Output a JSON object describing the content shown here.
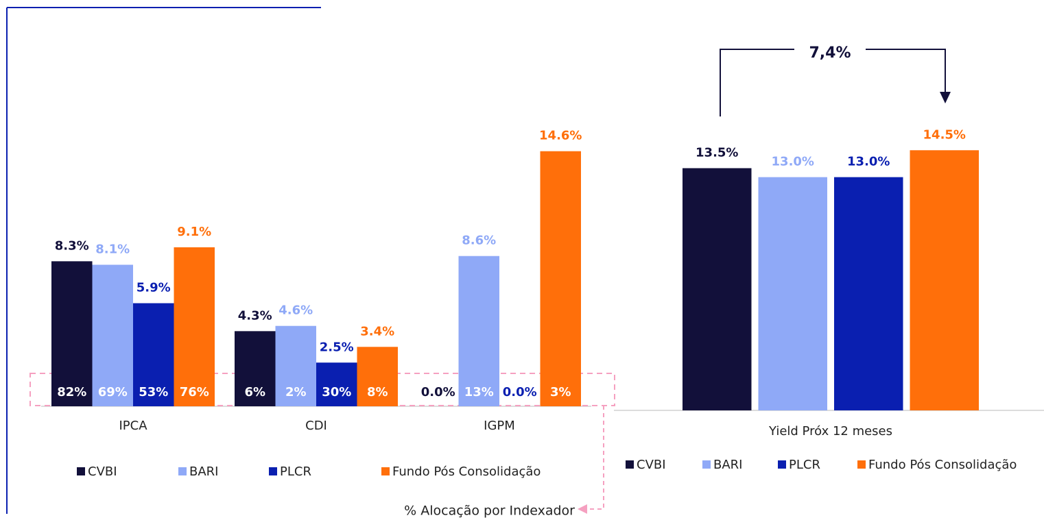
{
  "chart_data": [
    {
      "type": "bar",
      "categories": [
        "IPCA",
        "CDI",
        "IGPM"
      ],
      "series": [
        {
          "name": "CVBI",
          "color": "#12103a",
          "values": [
            8.3,
            4.3,
            null
          ],
          "value_labels": [
            "8.3%",
            "4.3%",
            null
          ],
          "allocation": [
            82,
            6,
            0
          ],
          "allocation_labels": [
            "82%",
            "6%",
            "0.0%"
          ]
        },
        {
          "name": "BARI",
          "color": "#8fa9f7",
          "values": [
            8.1,
            4.6,
            8.6
          ],
          "value_labels": [
            "8.1%",
            "4.6%",
            "8.6%"
          ],
          "allocation": [
            69,
            2,
            13
          ],
          "allocation_labels": [
            "69%",
            "2%",
            "13%"
          ]
        },
        {
          "name": "PLCR",
          "color": "#0a1fb0",
          "values": [
            5.9,
            2.5,
            null
          ],
          "value_labels": [
            "5.9%",
            "2.5%",
            null
          ],
          "allocation": [
            53,
            30,
            0
          ],
          "allocation_labels": [
            "53%",
            "30%",
            "0.0%"
          ]
        },
        {
          "name": "Fundo Pós Consolidação",
          "color": "#ff6f0a",
          "values": [
            9.1,
            3.4,
            14.6
          ],
          "value_labels": [
            "9.1%",
            "3.4%",
            "14.6%"
          ],
          "allocation": [
            76,
            8,
            3
          ],
          "allocation_labels": [
            "76%",
            "8%",
            "3%"
          ]
        }
      ],
      "ylim": [
        0,
        16
      ],
      "annotation": "% Alocação por Indexador"
    },
    {
      "type": "bar",
      "categories": [
        "Yield Próx 12 meses"
      ],
      "series": [
        {
          "name": "CVBI",
          "color": "#12103a",
          "values": [
            13.5
          ],
          "value_labels": [
            "13.5%"
          ]
        },
        {
          "name": "BARI",
          "color": "#8fa9f7",
          "values": [
            13.0
          ],
          "value_labels": [
            "13.0%"
          ]
        },
        {
          "name": "PLCR",
          "color": "#0a1fb0",
          "values": [
            13.0
          ],
          "value_labels": [
            "13.0%"
          ]
        },
        {
          "name": "Fundo Pós Consolidação",
          "color": "#ff6f0a",
          "values": [
            14.5
          ],
          "value_labels": [
            "14.5%"
          ]
        }
      ],
      "ylim": [
        0,
        16
      ],
      "annotation": "7,4%"
    }
  ]
}
